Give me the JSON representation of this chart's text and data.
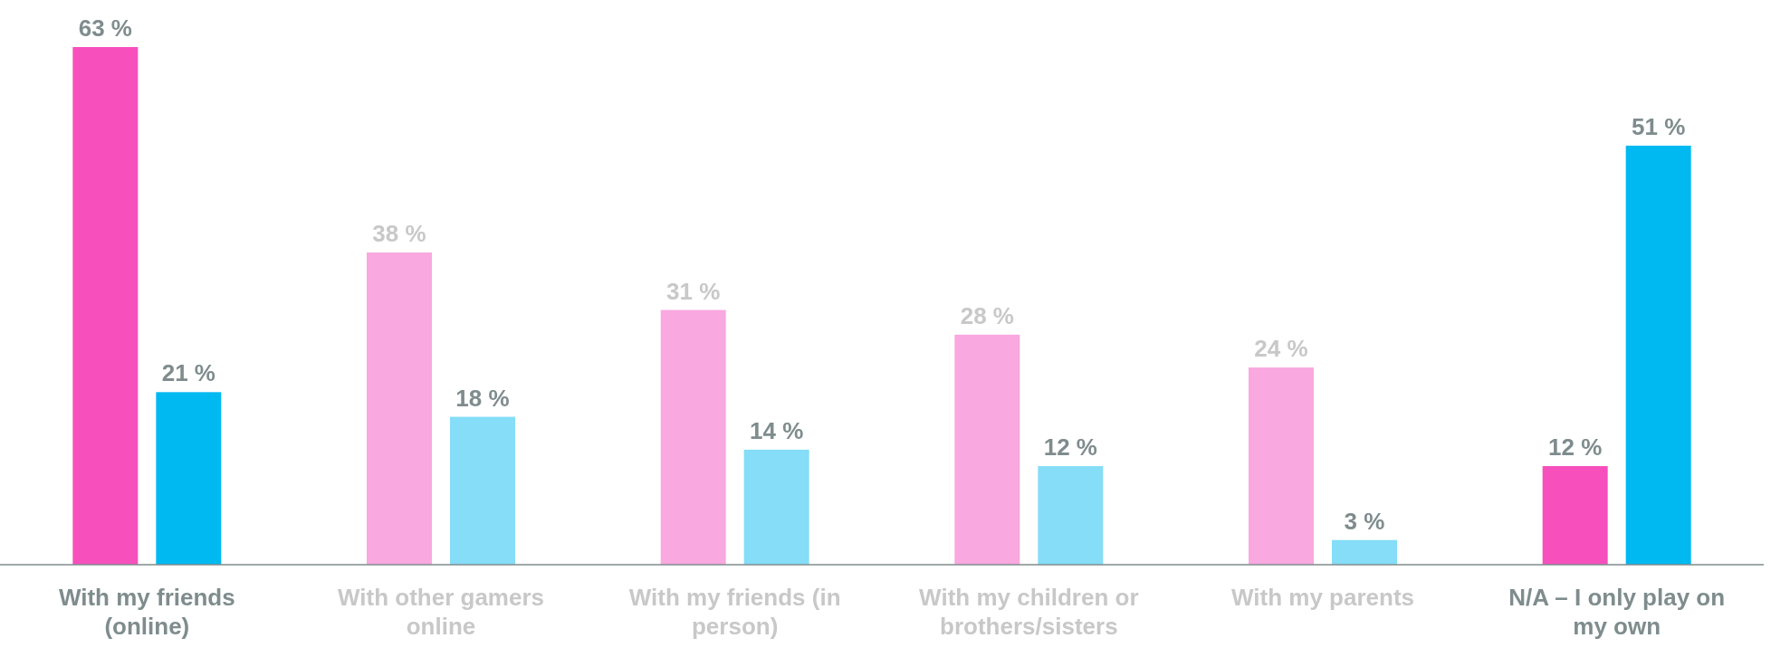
{
  "chart_data": {
    "type": "bar",
    "categories": [
      "With my friends (online)",
      "With other gamers online",
      "With my friends (in person)",
      "With my children or brothers/sisters",
      "With my parents",
      "N/A – I only play on my own"
    ],
    "series": [
      {
        "colors": [
          "#f74fbc",
          "#f9a8e0",
          "#f9a8e0",
          "#f9a8e0",
          "#f9a8e0",
          "#f74fbc"
        ],
        "values": [
          63,
          38,
          31,
          28,
          24,
          12
        ],
        "value_labels": [
          "63 %",
          "38 %",
          "31 %",
          "28 %",
          "24 %",
          "12 %"
        ]
      },
      {
        "colors": [
          "#00b9f1",
          "#85ddf7",
          "#85ddf7",
          "#85ddf7",
          "#85ddf7",
          "#00b9f1"
        ],
        "values": [
          21,
          18,
          14,
          12,
          3,
          51
        ],
        "value_labels": [
          "21 %",
          "18 %",
          "14 %",
          "12 %",
          "3 %",
          "51 %"
        ]
      }
    ]
  }
}
